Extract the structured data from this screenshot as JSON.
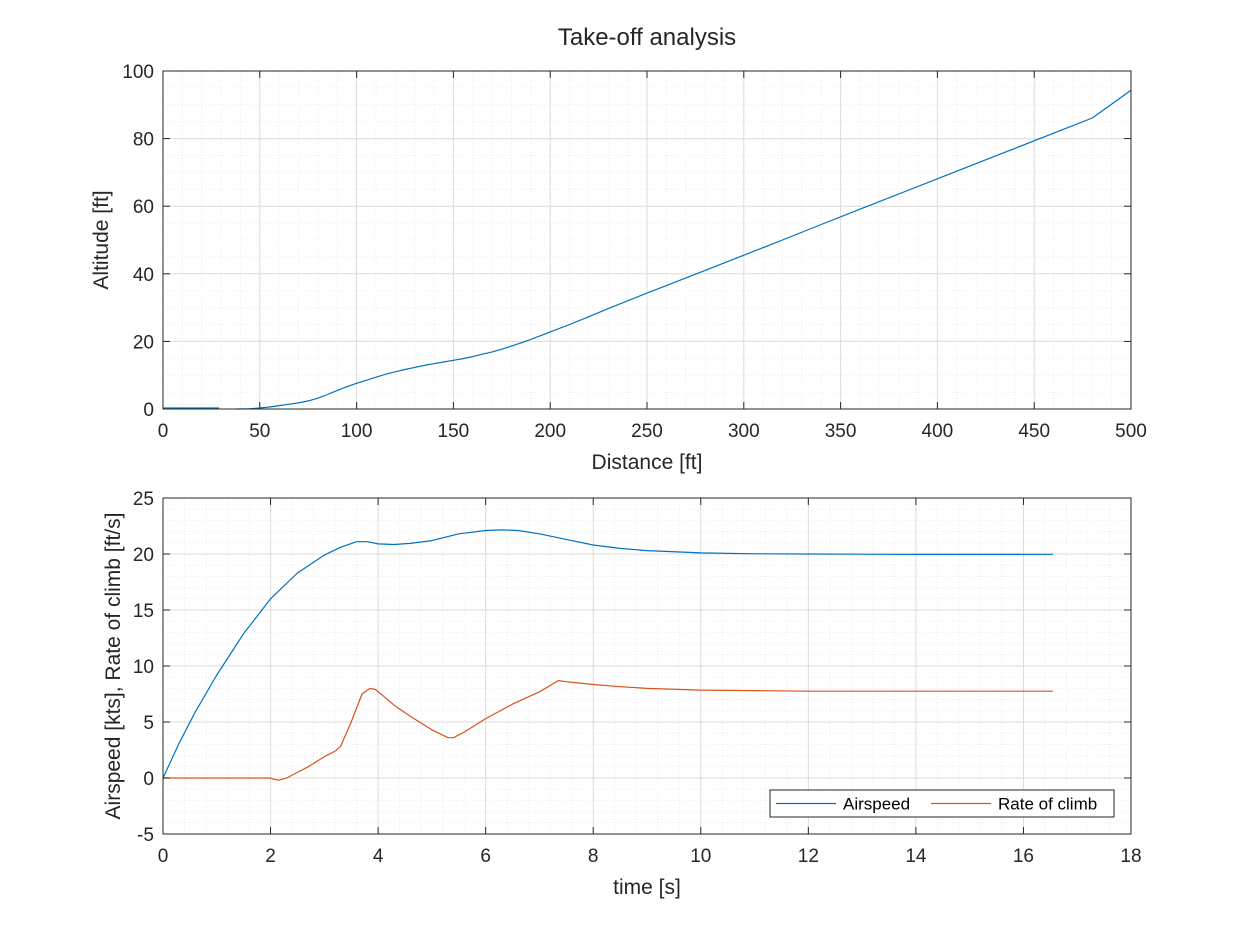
{
  "figure": {
    "title": "Take-off analysis"
  },
  "colors": {
    "airspeed": "#0072BD",
    "rate_of_climb": "#D95319",
    "axes": "#262626",
    "grid_major": "#dcdcdc",
    "grid_minor": "#ececec"
  },
  "chart_data": [
    {
      "type": "line",
      "title": "Take-off analysis",
      "xlabel": "Distance [ft]",
      "ylabel": "Altitude [ft]",
      "xlim": [
        0,
        500
      ],
      "ylim": [
        0,
        100
      ],
      "xticks": [
        "0",
        "50",
        "100",
        "150",
        "200",
        "250",
        "300",
        "350",
        "400",
        "450",
        "500"
      ],
      "yticks": [
        "0",
        "20",
        "40",
        "60",
        "80",
        "100"
      ],
      "grid": true,
      "minor_grid": true,
      "series": [
        {
          "color": "#0072BD",
          "segments": [
            {
              "x": [
                0,
                10,
                20,
                29
              ],
              "y": [
                0.3,
                0.3,
                0.3,
                0.3
              ]
            },
            {
              "x": [
                38,
                45,
                50,
                55,
                60,
                65,
                70,
                75,
                80,
                85,
                90,
                95,
                100,
                105,
                110,
                115,
                120,
                125,
                130,
                135,
                140,
                145,
                150,
                155,
                160,
                165,
                170,
                175,
                180,
                185,
                190,
                195,
                200,
                210,
                220,
                230,
                240,
                250,
                260,
                280,
                300,
                320,
                340,
                360,
                380,
                400,
                420,
                440,
                460,
                480,
                500
              ],
              "y": [
                0,
                0.1,
                0.3,
                0.6,
                1.0,
                1.4,
                1.8,
                2.4,
                3.2,
                4.3,
                5.5,
                6.6,
                7.6,
                8.5,
                9.4,
                10.3,
                11.0,
                11.7,
                12.3,
                12.9,
                13.4,
                13.9,
                14.4,
                14.9,
                15.5,
                16.2,
                16.9,
                17.7,
                18.6,
                19.6,
                20.6,
                21.7,
                22.8,
                25.0,
                27.3,
                29.7,
                32.0,
                34.3,
                36.5,
                41.0,
                45.5,
                50.0,
                54.6,
                59.1,
                63.6,
                68.1,
                72.6,
                77.1,
                81.6,
                86.1,
                94.3
              ]
            }
          ]
        }
      ]
    },
    {
      "type": "line",
      "xlabel": "time [s]",
      "ylabel": "Airspeed [kts], Rate of climb [ft/s]",
      "xlim": [
        0,
        18
      ],
      "ylim": [
        -5,
        25
      ],
      "xticks": [
        "0",
        "2",
        "4",
        "6",
        "8",
        "10",
        "12",
        "14",
        "16",
        "18"
      ],
      "yticks": [
        "-5",
        "0",
        "5",
        "10",
        "15",
        "20",
        "25"
      ],
      "grid": true,
      "minor_grid": true,
      "legend": "bottom-right",
      "series": [
        {
          "name": "Airspeed",
          "color": "#0072BD",
          "x": [
            0,
            0.3,
            0.6,
            1.0,
            1.5,
            2.0,
            2.5,
            3.0,
            3.3,
            3.6,
            3.8,
            4.0,
            4.3,
            4.6,
            5.0,
            5.5,
            6.0,
            6.3,
            6.6,
            7.0,
            7.5,
            8.0,
            8.5,
            9.0,
            10.0,
            11.0,
            12.0,
            13.0,
            14.0,
            15.0,
            16.55
          ],
          "y": [
            0,
            3.1,
            5.9,
            9.2,
            12.9,
            16.0,
            18.3,
            19.9,
            20.6,
            21.1,
            21.1,
            20.9,
            20.85,
            20.95,
            21.2,
            21.8,
            22.1,
            22.15,
            22.1,
            21.8,
            21.3,
            20.8,
            20.5,
            20.3,
            20.1,
            20.02,
            20.0,
            19.98,
            19.96,
            19.96,
            19.97
          ]
        },
        {
          "name": "Rate of climb",
          "color": "#D95319",
          "x": [
            0,
            0.5,
            1.0,
            1.5,
            2.0,
            2.05,
            2.15,
            2.3,
            2.5,
            2.7,
            3.0,
            3.2,
            3.3,
            3.5,
            3.7,
            3.85,
            3.95,
            4.1,
            4.3,
            4.6,
            5.0,
            5.3,
            5.4,
            5.6,
            6.0,
            6.5,
            7.0,
            7.35,
            7.5,
            7.8,
            8.0,
            8.5,
            9.0,
            10.0,
            11.0,
            12.0,
            13.0,
            14.0,
            15.0,
            16.55
          ],
          "y": [
            0,
            0,
            0,
            0,
            0,
            -0.1,
            -0.2,
            0,
            0.5,
            1.0,
            1.9,
            2.4,
            2.8,
            5.0,
            7.5,
            8.0,
            7.9,
            7.3,
            6.5,
            5.5,
            4.3,
            3.6,
            3.6,
            4.1,
            5.3,
            6.6,
            7.7,
            8.7,
            8.6,
            8.45,
            8.35,
            8.15,
            8.0,
            7.85,
            7.8,
            7.75,
            7.75,
            7.75,
            7.75,
            7.75
          ]
        }
      ]
    }
  ]
}
